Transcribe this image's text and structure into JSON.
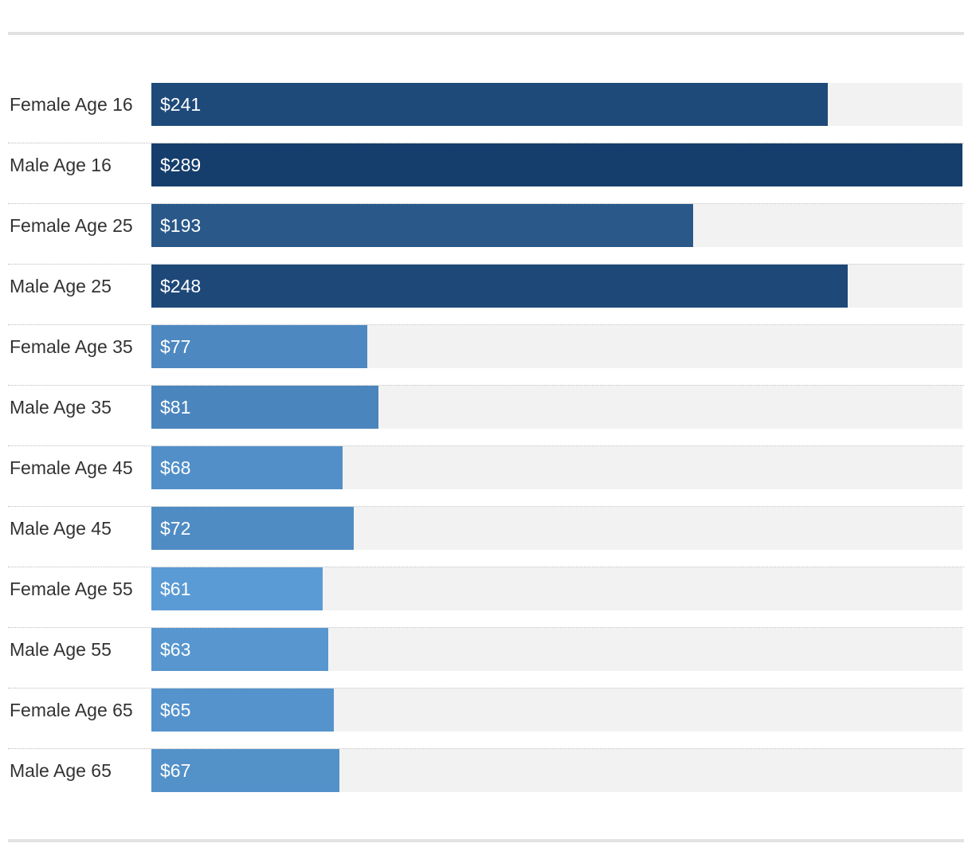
{
  "chart_data": {
    "type": "bar",
    "orientation": "horizontal",
    "categories": [
      "Female Age 16",
      "Male Age 16",
      "Female Age 25",
      "Male Age 25",
      "Female Age 35",
      "Male Age 35",
      "Female Age 45",
      "Male Age 45",
      "Female Age 55",
      "Male Age 55",
      "Female Age 65",
      "Male Age 65"
    ],
    "values": [
      241,
      289,
      193,
      248,
      77,
      81,
      68,
      72,
      61,
      63,
      65,
      67
    ],
    "value_labels": [
      "$241",
      "$289",
      "$193",
      "$248",
      "$77",
      "$81",
      "$68",
      "$72",
      "$61",
      "$63",
      "$65",
      "$67"
    ],
    "title": "",
    "xlabel": "",
    "ylabel": "",
    "xlim": [
      0,
      289
    ],
    "grid": false,
    "legend": "none",
    "colors": {
      "scale_light": "#5b9bd5",
      "scale_dark": "#153e6c",
      "track": "#f2f2f2",
      "label_text": "#333333",
      "value_text": "#ffffff"
    }
  }
}
